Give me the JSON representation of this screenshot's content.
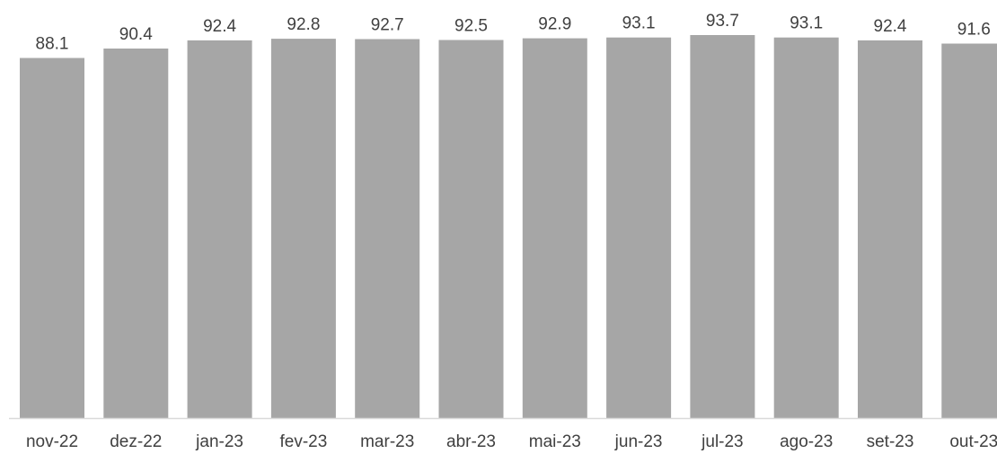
{
  "chart_data": {
    "type": "bar",
    "title": "",
    "xlabel": "",
    "ylabel": "",
    "categories": [
      "nov-22",
      "dez-22",
      "jan-23",
      "fev-23",
      "mar-23",
      "abr-23",
      "mai-23",
      "jun-23",
      "jul-23",
      "ago-23",
      "set-23",
      "out-23"
    ],
    "values": [
      88.1,
      90.4,
      92.4,
      92.8,
      92.7,
      92.5,
      92.9,
      93.1,
      93.7,
      93.1,
      92.4,
      91.6
    ],
    "value_labels": [
      "88.1",
      "90.4",
      "92.4",
      "92.8",
      "92.7",
      "92.5",
      "92.9",
      "93.1",
      "93.7",
      "93.1",
      "92.4",
      "91.6"
    ],
    "ylim": [
      0,
      100
    ],
    "grid": false,
    "legend": "none",
    "colors": {
      "bar": "#a6a6a6",
      "axis": "#d9d9d9",
      "text": "#404040"
    }
  }
}
